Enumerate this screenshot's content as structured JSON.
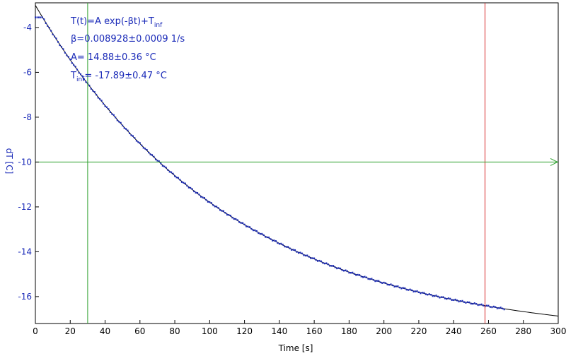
{
  "chart_data": {
    "type": "scatter",
    "xlabel": "Time [s]",
    "ylabel": "dT [C]",
    "xlim": [
      0,
      300
    ],
    "ylim": [
      -17.2,
      -2.9
    ],
    "x_ticks": [
      0,
      20,
      40,
      60,
      80,
      100,
      120,
      140,
      160,
      180,
      200,
      220,
      240,
      260,
      280,
      300
    ],
    "y_ticks": [
      -4,
      -6,
      -8,
      -10,
      -12,
      -14,
      -16
    ],
    "grid": false,
    "fit": {
      "formula_main": "T(t)=A exp(-βt)+T",
      "formula_sub": "inf",
      "beta_text": "β=0.008928±0.0009 1/s",
      "a_text": "A= 14.88±0.36 °C",
      "tinf_main": "T",
      "tinf_sub": "inf",
      "tinf_rest": "= -17.89±0.47 °C",
      "beta": 0.008928,
      "A": 14.88,
      "T_inf": -17.89
    },
    "measured_series": {
      "x_start": 0,
      "x_end": 269,
      "x_step": 1,
      "plateau_x": 4,
      "plateau_y": -3.55
    },
    "markers": {
      "vertical_green_x": 30,
      "vertical_red_x": 258,
      "horizontal_green_y": -10
    },
    "colors": {
      "data": "#1a2ab8",
      "fit": "#000000",
      "green": "#2ca02c",
      "red": "#d62728",
      "axis": "#000000"
    }
  }
}
